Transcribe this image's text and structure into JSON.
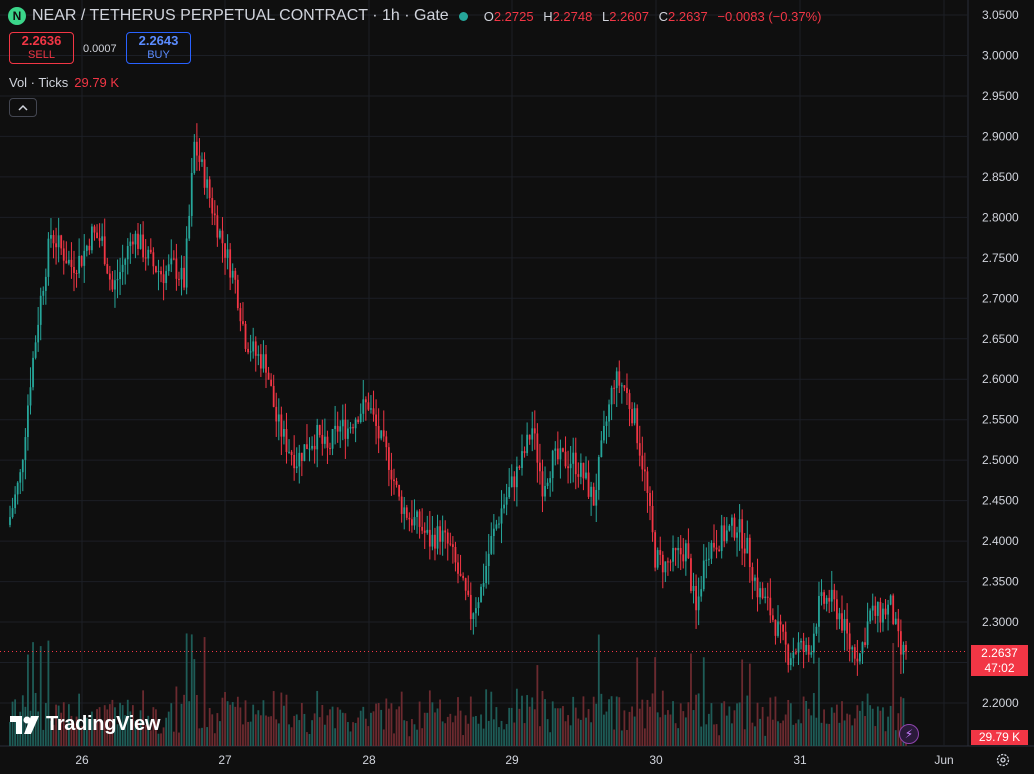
{
  "header": {
    "symbol_title": "NEAR / TETHERUS PERPETUAL CONTRACT · 1h · Gate",
    "logo_letter": "N",
    "open_key": "O",
    "open": "2.2725",
    "high_key": "H",
    "high": "2.2748",
    "low_key": "L",
    "low": "2.2607",
    "close_key": "C",
    "close": "2.2637",
    "change": "−0.0083 (−0.37%)"
  },
  "trade": {
    "sell_price": "2.2636",
    "sell_label": "SELL",
    "spread": "0.0007",
    "buy_price": "2.2643",
    "buy_label": "BUY"
  },
  "volume_legend": {
    "label": "Vol · Ticks",
    "value": "29.79 K"
  },
  "branding": {
    "name": "TradingView"
  },
  "current_price_tag": {
    "price": "2.2637",
    "countdown": "47:02"
  },
  "volume_tag": "29.79 K",
  "colors": {
    "up": "#26a69a",
    "down": "#f23645",
    "up_vol": "#1e5c57",
    "down_vol": "#6b2a2f",
    "background": "#0f0f0f"
  },
  "chart_data": {
    "type": "candlestick",
    "interval": "1h",
    "y_axis_ticks": [
      "3.0500",
      "3.0000",
      "2.9500",
      "2.9000",
      "2.8500",
      "2.8000",
      "2.7500",
      "2.7000",
      "2.6500",
      "2.6000",
      "2.5500",
      "2.5000",
      "2.4500",
      "2.4000",
      "2.3500",
      "2.3000",
      "2.2500",
      "2.2000"
    ],
    "ylim": [
      2.175,
      3.055
    ],
    "x_axis_ticks": [
      "26",
      "27",
      "28",
      "29",
      "30",
      "31",
      "Jun"
    ],
    "last_price": 2.2637,
    "close_path_points": [
      [
        0,
        2.43
      ],
      [
        4,
        2.48
      ],
      [
        8,
        2.6
      ],
      [
        12,
        2.7
      ],
      [
        16,
        2.78
      ],
      [
        20,
        2.76
      ],
      [
        24,
        2.74
      ],
      [
        28,
        2.75
      ],
      [
        32,
        2.78
      ],
      [
        36,
        2.77
      ],
      [
        40,
        2.71
      ],
      [
        44,
        2.74
      ],
      [
        48,
        2.78
      ],
      [
        52,
        2.76
      ],
      [
        56,
        2.74
      ],
      [
        60,
        2.73
      ],
      [
        64,
        2.74
      ],
      [
        68,
        2.72
      ],
      [
        70,
        2.8
      ],
      [
        72,
        2.89
      ],
      [
        76,
        2.85
      ],
      [
        80,
        2.8
      ],
      [
        84,
        2.76
      ],
      [
        88,
        2.72
      ],
      [
        92,
        2.65
      ],
      [
        96,
        2.63
      ],
      [
        100,
        2.62
      ],
      [
        104,
        2.55
      ],
      [
        108,
        2.52
      ],
      [
        112,
        2.5
      ],
      [
        116,
        2.52
      ],
      [
        120,
        2.53
      ],
      [
        124,
        2.51
      ],
      [
        128,
        2.54
      ],
      [
        132,
        2.54
      ],
      [
        136,
        2.56
      ],
      [
        140,
        2.57
      ],
      [
        144,
        2.53
      ],
      [
        148,
        2.5
      ],
      [
        152,
        2.45
      ],
      [
        156,
        2.43
      ],
      [
        160,
        2.42
      ],
      [
        164,
        2.4
      ],
      [
        168,
        2.41
      ],
      [
        172,
        2.39
      ],
      [
        176,
        2.35
      ],
      [
        180,
        2.31
      ],
      [
        184,
        2.34
      ],
      [
        188,
        2.4
      ],
      [
        192,
        2.44
      ],
      [
        196,
        2.47
      ],
      [
        200,
        2.5
      ],
      [
        204,
        2.54
      ],
      [
        208,
        2.47
      ],
      [
        212,
        2.5
      ],
      [
        216,
        2.5
      ],
      [
        220,
        2.5
      ],
      [
        224,
        2.48
      ],
      [
        228,
        2.45
      ],
      [
        232,
        2.53
      ],
      [
        236,
        2.6
      ],
      [
        240,
        2.59
      ],
      [
        244,
        2.55
      ],
      [
        248,
        2.48
      ],
      [
        252,
        2.38
      ],
      [
        256,
        2.37
      ],
      [
        260,
        2.38
      ],
      [
        264,
        2.39
      ],
      [
        268,
        2.31
      ],
      [
        272,
        2.39
      ],
      [
        276,
        2.4
      ],
      [
        280,
        2.41
      ],
      [
        284,
        2.42
      ],
      [
        288,
        2.39
      ],
      [
        292,
        2.34
      ],
      [
        296,
        2.32
      ],
      [
        300,
        2.29
      ],
      [
        304,
        2.26
      ],
      [
        308,
        2.27
      ],
      [
        312,
        2.26
      ],
      [
        316,
        2.32
      ],
      [
        320,
        2.33
      ],
      [
        324,
        2.31
      ],
      [
        328,
        2.27
      ],
      [
        332,
        2.26
      ],
      [
        336,
        2.31
      ],
      [
        340,
        2.31
      ],
      [
        344,
        2.32
      ],
      [
        348,
        2.26
      ],
      [
        350,
        2.2637
      ]
    ]
  }
}
